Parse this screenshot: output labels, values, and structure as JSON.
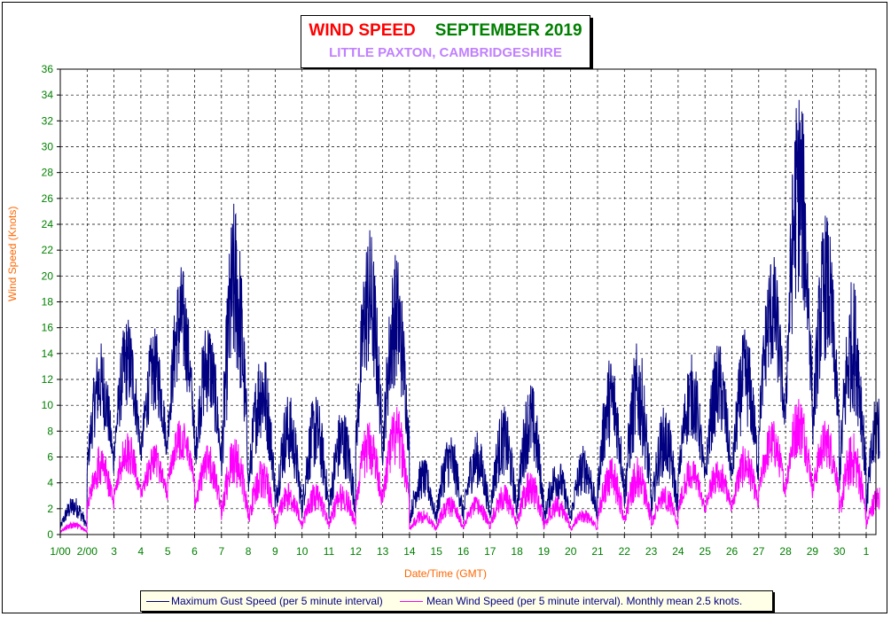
{
  "chart_data": {
    "type": "line",
    "title_part1": "WIND SPEED",
    "title_part2": "SEPTEMBER 2019",
    "subtitle": "LITTLE PAXTON, CAMBRIDGESHIRE",
    "xlabel": "Date/Time (GMT)",
    "ylabel": "Wind Speed (Knots)",
    "ylim": [
      0,
      36
    ],
    "yticks": [
      0,
      2,
      4,
      6,
      8,
      10,
      12,
      14,
      16,
      18,
      20,
      22,
      24,
      26,
      28,
      30,
      32,
      34,
      36
    ],
    "xlim": [
      0,
      30.5
    ],
    "xtick_labels": [
      "1/00",
      "2/00",
      "3",
      "4",
      "5",
      "6",
      "7",
      "8",
      "9",
      "10",
      "11",
      "12",
      "13",
      "14",
      "15",
      "16",
      "17",
      "18",
      "19",
      "20",
      "21",
      "22",
      "23",
      "24",
      "25",
      "26",
      "27",
      "28",
      "29",
      "30",
      "1"
    ],
    "grid": true,
    "legend_position": "bottom",
    "series": [
      {
        "name": "Maximum Gust Speed (per 5 minute interval)",
        "color": "#000080",
        "envelope_max": [
          3,
          15,
          17,
          16,
          21,
          17,
          26,
          15,
          11,
          11,
          10,
          24,
          22,
          6,
          8,
          8,
          10,
          12,
          6,
          7,
          14,
          15,
          10,
          14,
          15,
          16,
          22,
          35,
          25,
          20,
          12
        ],
        "envelope_min": [
          0,
          3,
          4,
          4,
          5,
          3,
          1,
          1,
          0,
          0,
          0,
          3,
          3,
          0,
          0,
          0,
          0,
          0,
          0,
          0,
          1,
          0,
          0,
          2,
          2,
          2,
          5,
          5,
          4,
          1,
          0
        ]
      },
      {
        "name": "Mean Wind Speed (per 5 minute interval). Monthly mean 2.5 knots.",
        "color": "#ff00ff",
        "envelope_max": [
          1,
          7,
          8,
          7,
          9,
          7,
          8,
          6,
          4,
          4,
          4,
          9,
          10,
          2,
          3,
          3,
          4,
          5,
          3,
          2,
          6,
          6,
          4,
          6,
          6,
          7,
          9,
          11,
          9,
          8,
          4
        ],
        "envelope_min": [
          0,
          1,
          2,
          2,
          3,
          1,
          0,
          0,
          0,
          0,
          0,
          1,
          1,
          0,
          0,
          0,
          0,
          0,
          0,
          0,
          0,
          0,
          0,
          1,
          1,
          1,
          2,
          2,
          2,
          0,
          0
        ]
      }
    ]
  }
}
